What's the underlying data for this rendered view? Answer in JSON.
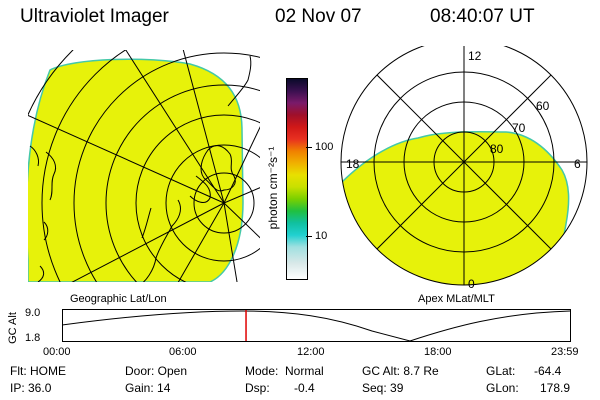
{
  "header": {
    "instrument": "Ultraviolet Imager",
    "date": "02 Nov 07",
    "time": "08:40:07 UT"
  },
  "colors": {
    "glow": "#e7f20a",
    "limb": "#44c8a8",
    "background": "#ffffff",
    "cursor": "#e00000"
  },
  "geo_panel": {
    "label": "Geographic Lat/Lon"
  },
  "apex_panel": {
    "label": "Apex MLat/MLT",
    "mlt_labels": {
      "top": "12",
      "left": "18",
      "right": "6",
      "bottom": "0"
    },
    "lat_labels": [
      "60",
      "70",
      "80"
    ]
  },
  "colorbar": {
    "unit_label": "photon cm⁻²s⁻¹",
    "tick_100": "100",
    "tick_10": "10",
    "colors_top_to_bottom": [
      "#0a0a2a",
      "#3a1050",
      "#7a1a6a",
      "#a0102a",
      "#d01818",
      "#e83020",
      "#f08000",
      "#f0b000",
      "#e8e000",
      "#c8e000",
      "#7ad000",
      "#20c040",
      "#10c0a0",
      "#20d0d0",
      "#a0e0e0",
      "#d8e8e8",
      "#ffffff"
    ]
  },
  "timeline": {
    "axis_label": "GC Alt",
    "y_ticks": [
      "9.0",
      "1.8"
    ],
    "x_ticks": [
      "00:00",
      "06:00",
      "12:00",
      "18:00",
      "23:59"
    ],
    "cursor_fraction": 0.361
  },
  "status": {
    "row1": {
      "flt": "Flt: HOME",
      "door": "Door: Open",
      "mode_label": "Mode:",
      "mode_value": "Normal",
      "gcalt": "GC Alt: 8.7 Re",
      "glat_label": "GLat:",
      "glat_value": "-64.4"
    },
    "row2": {
      "ip": "IP: 36.0",
      "gain": "Gain: 14",
      "dsp_label": "Dsp:",
      "dsp_value": "-0.4",
      "seq": "Seq: 39",
      "glon_label": "GLon:",
      "glon_value": "178.9"
    }
  }
}
